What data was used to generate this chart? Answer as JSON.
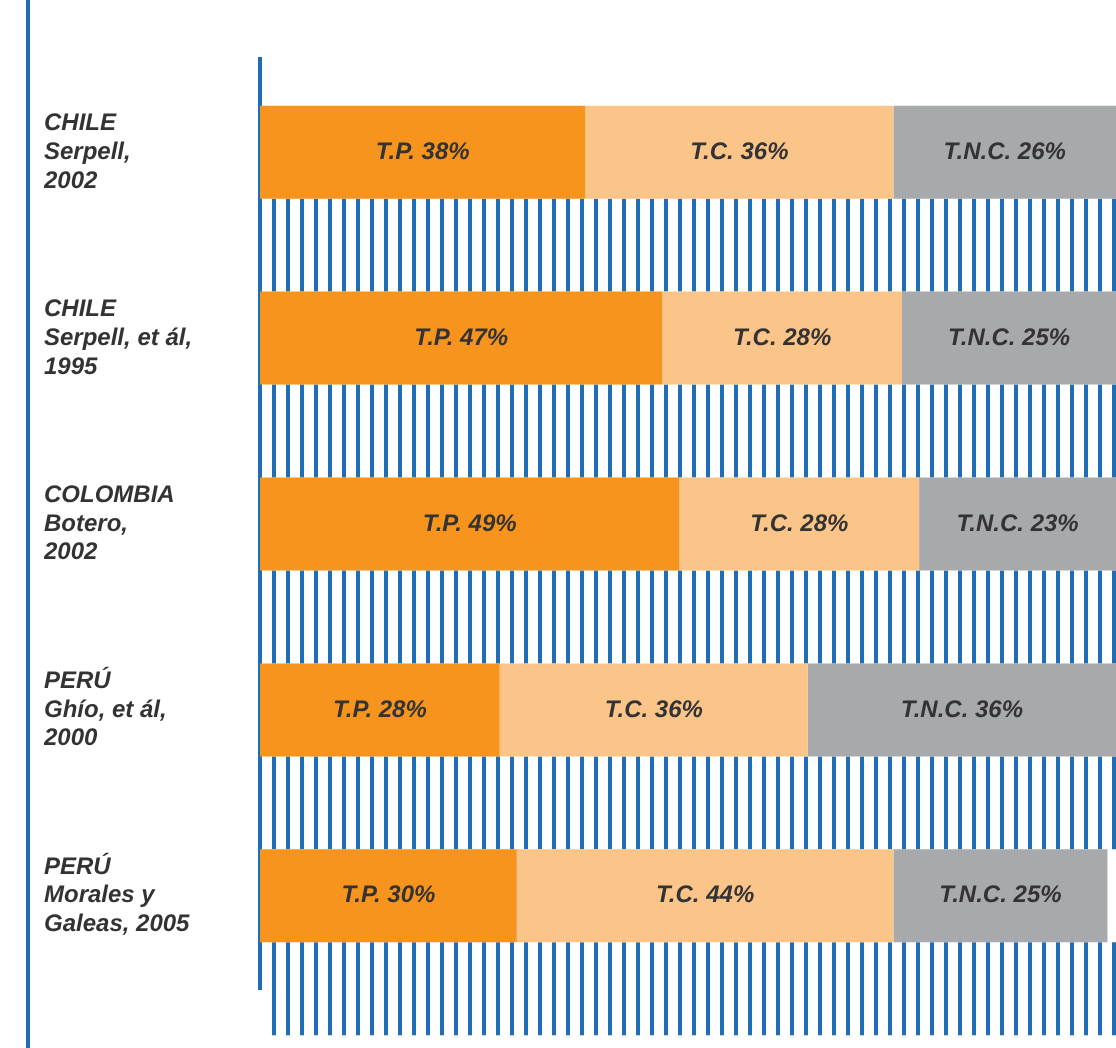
{
  "chart_data": {
    "type": "bar",
    "orientation": "horizontal",
    "stacked": true,
    "tick_labels": "y",
    "categories": [
      "CHILE\nSerpell,\n2002",
      "CHILE\nSerpell, et ál,\n1995",
      "COLOMBIA\nBotero,\n2002",
      "PERÚ\nGhío, et ál,\n2000",
      "PERÚ\nMorales y\nGaleas, 2005"
    ],
    "xlim": [
      0,
      100
    ],
    "series": [
      {
        "color": "#f7941d",
        "values": [
          38,
          47,
          49,
          28,
          30
        ],
        "value_labels": [
          "T.P. 38%",
          "T.P. 47%",
          "T.P. 49%",
          "T.P. 28%",
          "T.P. 30%"
        ]
      },
      {
        "color": "#fbc58a",
        "values": [
          36,
          28,
          28,
          36,
          44
        ],
        "value_labels": [
          "T.C. 36%",
          "T.C. 28%",
          "T.C. 28%",
          "T.C. 36%",
          "T.C. 44%"
        ]
      },
      {
        "color": "#a7a9ac",
        "values": [
          26,
          25,
          23,
          36,
          25
        ],
        "value_labels": [
          "T.N.C. 26%",
          "T.N.C. 25%",
          "T.N.C. 23%",
          "T.N.C. 36%",
          "T.N.C. 25%"
        ]
      }
    ]
  }
}
